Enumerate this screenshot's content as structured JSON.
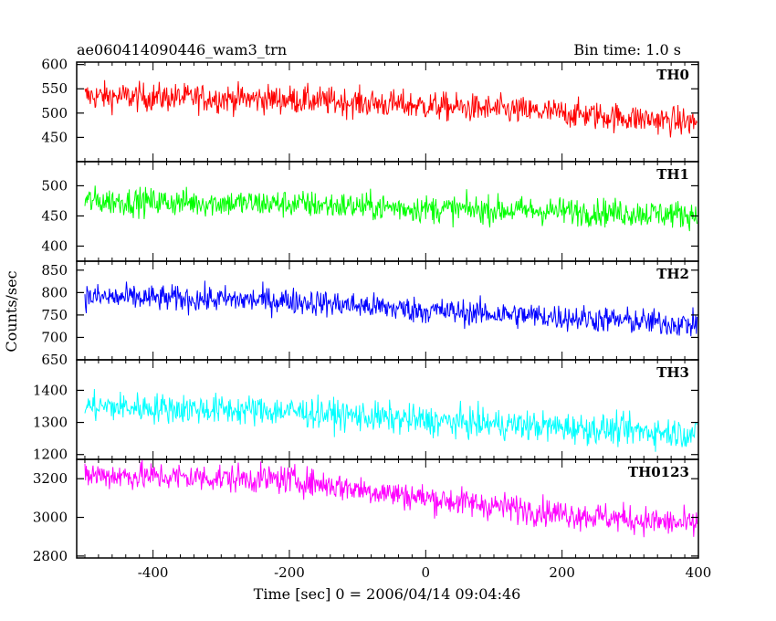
{
  "header": {
    "title": "ae060414090446_wam3_trn",
    "bin_time": "Bin time: 1.0 s"
  },
  "chart_data": {
    "type": "line",
    "xlabel": "Time [sec] 0 = 2006/04/14 09:04:46",
    "ylabel": "Counts/sec",
    "xlim": [
      -512,
      400
    ],
    "xticks": [
      -400,
      -200,
      0,
      200,
      400
    ],
    "grid": false,
    "panels": [
      {
        "name": "TH0",
        "color": "#ff0000",
        "ylim": [
          400,
          605
        ],
        "yticks": [
          450,
          500,
          550,
          600
        ],
        "trend": [
          [
            -500,
            535
          ],
          [
            -200,
            528
          ],
          [
            0,
            515
          ],
          [
            200,
            500
          ],
          [
            400,
            480
          ]
        ],
        "noise": 28
      },
      {
        "name": "TH1",
        "color": "#00ff00",
        "ylim": [
          375,
          540
        ],
        "yticks": [
          400,
          450,
          500
        ],
        "trend": [
          [
            -500,
            475
          ],
          [
            -200,
            470
          ],
          [
            0,
            462
          ],
          [
            200,
            458
          ],
          [
            400,
            452
          ]
        ],
        "noise": 22
      },
      {
        "name": "TH2",
        "color": "#0000ff",
        "ylim": [
          650,
          870
        ],
        "yticks": [
          650,
          700,
          750,
          800,
          850
        ],
        "trend": [
          [
            -500,
            790
          ],
          [
            -200,
            782
          ],
          [
            0,
            760
          ],
          [
            200,
            745
          ],
          [
            400,
            728
          ]
        ],
        "noise": 28
      },
      {
        "name": "TH3",
        "color": "#00ffff",
        "ylim": [
          1185,
          1495
        ],
        "yticks": [
          1200,
          1300,
          1400
        ],
        "trend": [
          [
            -500,
            1350
          ],
          [
            -200,
            1335
          ],
          [
            0,
            1305
          ],
          [
            200,
            1285
          ],
          [
            400,
            1265
          ]
        ],
        "noise": 45
      },
      {
        "name": "TH0123",
        "color": "#ff00ff",
        "ylim": [
          2790,
          3300
        ],
        "yticks": [
          2800,
          3000,
          3200
        ],
        "trend": [
          [
            -500,
            3220
          ],
          [
            -200,
            3195
          ],
          [
            0,
            3100
          ],
          [
            200,
            3020
          ],
          [
            400,
            2960
          ]
        ],
        "noise": 70
      }
    ]
  }
}
